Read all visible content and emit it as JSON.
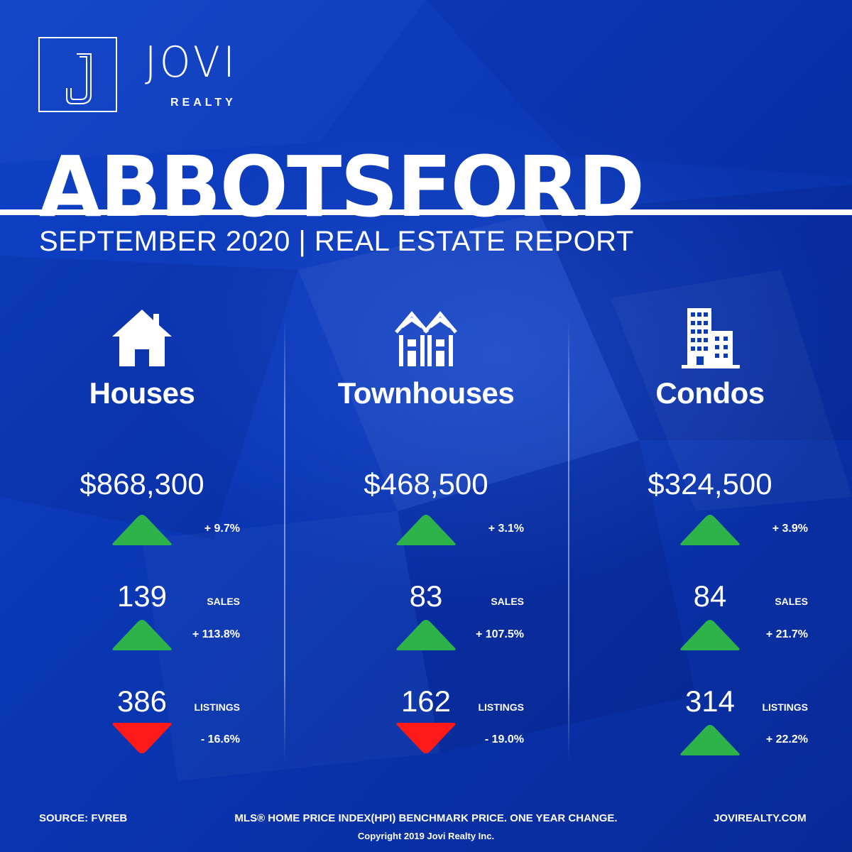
{
  "brand": {
    "name": "JOVI",
    "sub": "REALTY",
    "logo_letter": "J"
  },
  "title": {
    "city": "ABBOTSFORD",
    "report": "SEPTEMBER 2020 | REAL ESTATE REPORT"
  },
  "colors": {
    "up": "#2db34a",
    "down": "#ff1a1a",
    "background": "#0b3bbb"
  },
  "columns": [
    {
      "icon": "house-icon",
      "category": "Houses",
      "price": "$868,300",
      "price_change": "+ 9.7%",
      "price_trend": "up",
      "sales": "139",
      "sales_label": "SALES",
      "sales_change": "+ 113.8%",
      "sales_trend": "up",
      "listings": "386",
      "listings_label": "LISTINGS",
      "listings_change": "- 16.6%",
      "listings_trend": "down"
    },
    {
      "icon": "townhouse-icon",
      "category": "Townhouses",
      "price": "$468,500",
      "price_change": "+ 3.1%",
      "price_trend": "up",
      "sales": "83",
      "sales_label": "SALES",
      "sales_change": "+ 107.5%",
      "sales_trend": "up",
      "listings": "162",
      "listings_label": "LISTINGS",
      "listings_change": "- 19.0%",
      "listings_trend": "down"
    },
    {
      "icon": "condo-building-icon",
      "category": "Condos",
      "price": "$324,500",
      "price_change": "+ 3.9%",
      "price_trend": "up",
      "sales": "84",
      "sales_label": "SALES",
      "sales_change": "+ 21.7%",
      "sales_trend": "up",
      "listings": "314",
      "listings_label": "LISTINGS",
      "listings_change": "+ 22.2%",
      "listings_trend": "up"
    }
  ],
  "footer": {
    "source": "SOURCE:  FVREB",
    "note": "MLS® HOME PRICE INDEX(HPI) BENCHMARK PRICE. ONE YEAR CHANGE.",
    "website": "JOVIREALTY.COM",
    "copyright": "Copyright 2019 Jovi Realty Inc."
  }
}
